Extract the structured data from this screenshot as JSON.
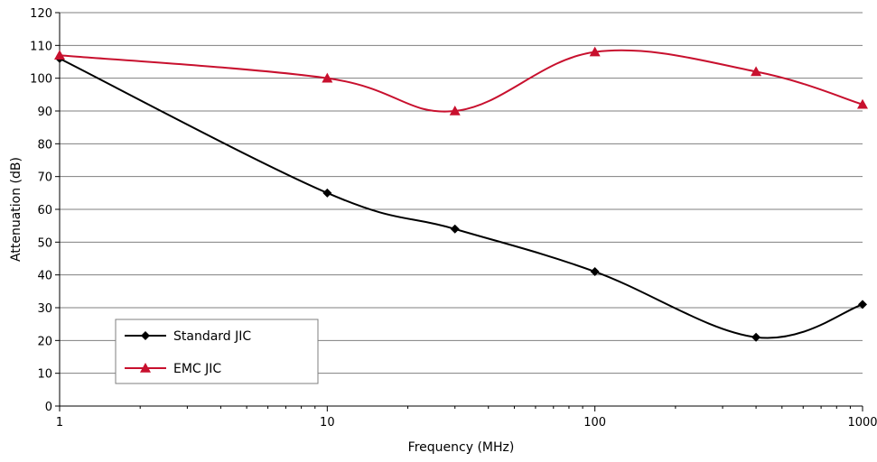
{
  "chart_data": {
    "type": "line",
    "x_scale": "log",
    "xlabel": "Frequency (MHz)",
    "ylabel": "Attenuation (dB)",
    "xlim": [
      1,
      1000
    ],
    "ylim": [
      0,
      120
    ],
    "x_ticks": [
      1,
      10,
      100,
      1000
    ],
    "x_tick_labels": [
      "1",
      "10",
      "100",
      "1000"
    ],
    "y_ticks": [
      0,
      10,
      20,
      30,
      40,
      50,
      60,
      70,
      80,
      90,
      100,
      110,
      120
    ],
    "y_tick_labels": [
      "0",
      "10",
      "20",
      "30",
      "40",
      "50",
      "60",
      "70",
      "80",
      "90",
      "100",
      "110",
      "120"
    ],
    "grid": "horizontal",
    "legend_position": "bottom-left",
    "series": [
      {
        "name": "Standard JIC",
        "color": "#000000",
        "marker": "diamond",
        "points": [
          {
            "x": 1,
            "y": 106
          },
          {
            "x": 10,
            "y": 65
          },
          {
            "x": 30,
            "y": 54
          },
          {
            "x": 100,
            "y": 41
          },
          {
            "x": 400,
            "y": 21
          },
          {
            "x": 1000,
            "y": 31
          }
        ]
      },
      {
        "name": "EMC JIC",
        "color": "#c8102e",
        "marker": "triangle",
        "points": [
          {
            "x": 1,
            "y": 107
          },
          {
            "x": 10,
            "y": 100
          },
          {
            "x": 30,
            "y": 90
          },
          {
            "x": 100,
            "y": 108
          },
          {
            "x": 400,
            "y": 102
          },
          {
            "x": 1000,
            "y": 92
          }
        ]
      }
    ]
  }
}
